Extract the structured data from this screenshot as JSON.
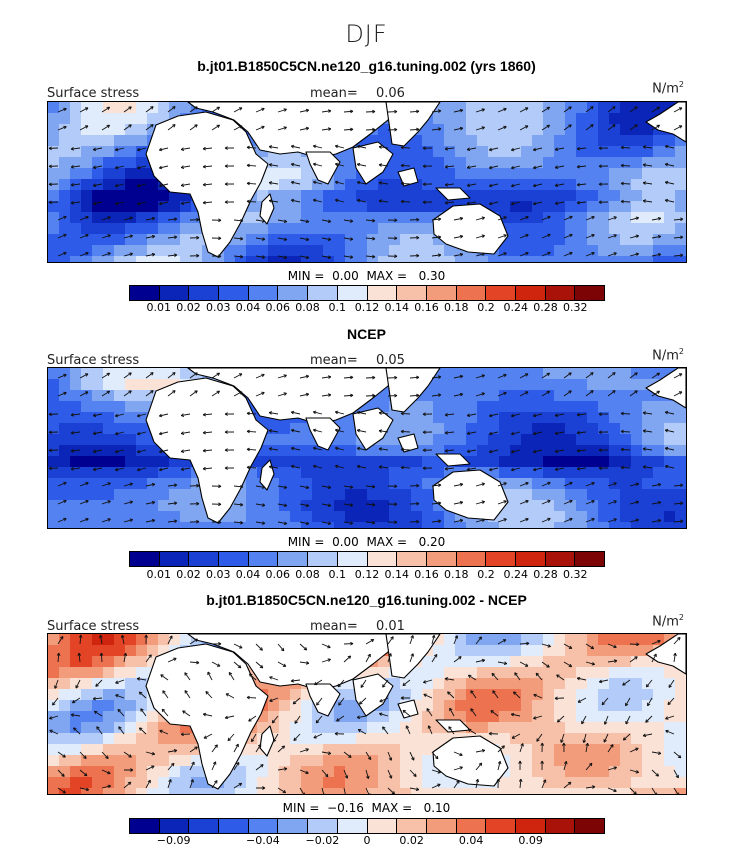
{
  "figure_title": "DJF",
  "colors": [
    "#000090",
    "#0a25b8",
    "#1a40d4",
    "#2e5ce8",
    "#5482f0",
    "#80a6f2",
    "#b2cbf8",
    "#e0ecfc",
    "#fbe2d6",
    "#f7c0a8",
    "#f29c7c",
    "#ec7250",
    "#e44426",
    "#cf240e",
    "#a81208",
    "#7c0404"
  ],
  "panels": [
    {
      "title": "b.jt01.B1850C5CN.ne120_g16.tuning.002 (yrs 1860)",
      "left_label": "Surface stress",
      "mean_label": "mean=",
      "mean_value": "0.06",
      "units": "N/m",
      "units_exp": "2",
      "min_label": "MIN =",
      "min_value": "0.00",
      "max_label": "MAX =",
      "max_value": "0.30",
      "tick_labels": [
        "0.01",
        "0.02",
        "0.03",
        "0.04",
        "0.06",
        "0.08",
        "0.1",
        "0.12",
        "0.14",
        "0.16",
        "0.18",
        "0.2",
        "0.24",
        "0.28",
        "0.32"
      ]
    },
    {
      "title": "NCEP",
      "left_label": "Surface stress",
      "mean_label": "mean=",
      "mean_value": "0.05",
      "units": "N/m",
      "units_exp": "2",
      "min_label": "MIN =",
      "min_value": "0.00",
      "max_label": "MAX =",
      "max_value": "0.20",
      "tick_labels": [
        "0.01",
        "0.02",
        "0.03",
        "0.04",
        "0.06",
        "0.08",
        "0.1",
        "0.12",
        "0.14",
        "0.16",
        "0.18",
        "0.2",
        "0.24",
        "0.28",
        "0.32"
      ]
    },
    {
      "title": "b.jt01.B1850C5CN.ne120_g16.tuning.002 - NCEP",
      "left_label": "Surface stress",
      "mean_label": "mean=",
      "mean_value": "0.01",
      "units": "N/m",
      "units_exp": "2",
      "min_label": "MIN =",
      "min_value": "−0.16",
      "max_label": "MAX =",
      "max_value": "0.10",
      "tick_labels": [
        "−0.09",
        "−0.04",
        "−0.02",
        "0",
        "0.02",
        "0.04",
        "0.09"
      ]
    }
  ]
}
